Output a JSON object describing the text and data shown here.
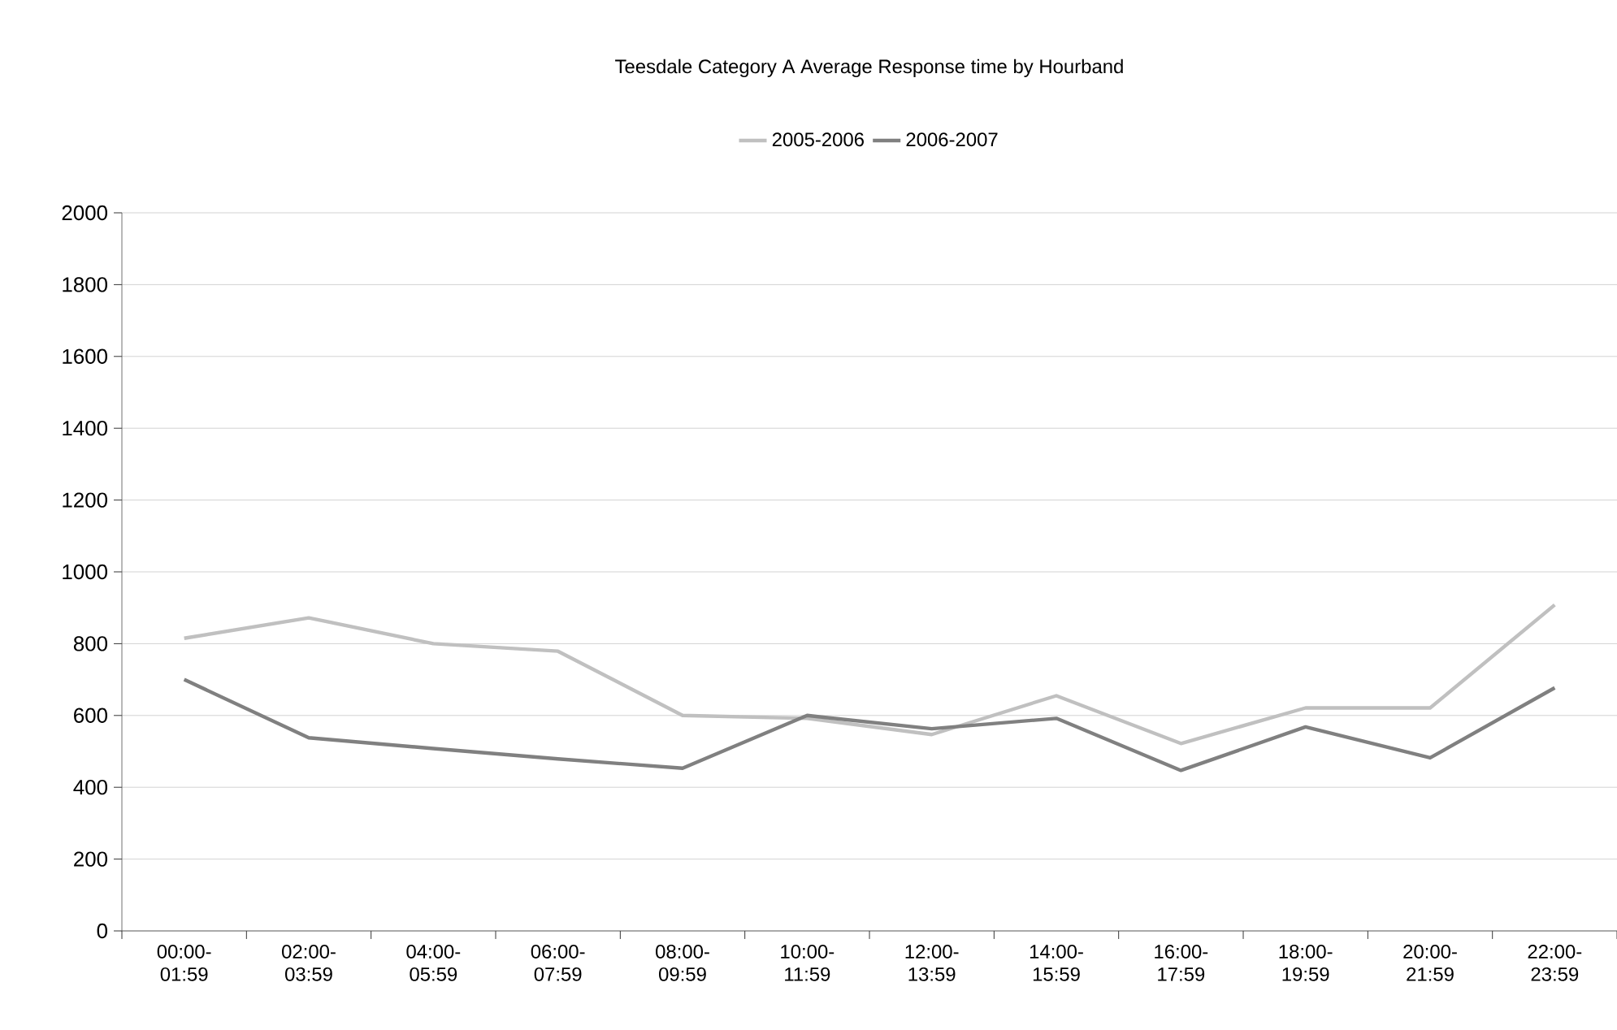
{
  "chart_data": {
    "type": "line",
    "title": "Teesdale Category A Average Response time by Hourband",
    "categories": [
      "00:00-01:59",
      "02:00-03:59",
      "04:00-05:59",
      "06:00-07:59",
      "08:00-09:59",
      "10:00-11:59",
      "12:00-13:59",
      "14:00-15:59",
      "16:00-17:59",
      "18:00-19:59",
      "20:00-21:59",
      "22:00-23:59"
    ],
    "series": [
      {
        "name": "2005-2006",
        "color": "#c0c0c0",
        "values": [
          815,
          872,
          800,
          779,
          600,
          592,
          547,
          655,
          522,
          621,
          621,
          908
        ]
      },
      {
        "name": "2006-2007",
        "color": "#808080",
        "values": [
          700,
          538,
          508,
          479,
          453,
          600,
          563,
          592,
          447,
          568,
          482,
          677
        ]
      }
    ],
    "ylim": [
      0,
      2000
    ],
    "yticks": [
      0,
      200,
      400,
      600,
      800,
      1000,
      1200,
      1400,
      1600,
      1800,
      2000
    ],
    "grid": "y",
    "legend": "top",
    "marker": "none",
    "line_style": "solid"
  }
}
